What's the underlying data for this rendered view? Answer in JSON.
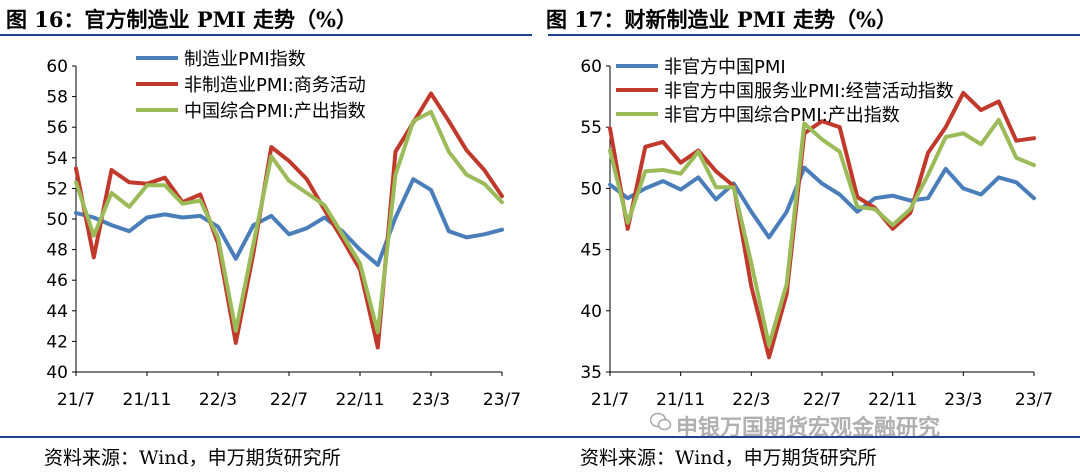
{
  "left_panel": {
    "title": "图 16：官方制造业 PMI 走势（%）",
    "source": "资料来源：Wind，申万期货研究所"
  },
  "right_panel": {
    "title": "图 17：财新制造业 PMI 走势（%）",
    "source": "资料来源：Wind，申万期货研究所"
  },
  "watermark": "申银万国期货宏观金融研究",
  "colors": {
    "blue": "#4a7ebb",
    "red": "#c0392b",
    "green": "#9bbb59",
    "frame": "#1f3f8f"
  },
  "chart_data": [
    {
      "type": "line",
      "title": "",
      "x": [
        "21/7",
        "21/8",
        "21/9",
        "21/10",
        "21/11",
        "21/12",
        "22/1",
        "22/2",
        "22/3",
        "22/4",
        "22/5",
        "22/6",
        "22/7",
        "22/8",
        "22/9",
        "22/10",
        "22/11",
        "22/12",
        "23/1",
        "23/2",
        "23/3",
        "23/4",
        "23/5",
        "23/6",
        "23/7"
      ],
      "tick_labels": [
        "21/7",
        "21/11",
        "22/3",
        "22/7",
        "22/11",
        "23/3",
        "23/7"
      ],
      "ylim": [
        40,
        60
      ],
      "yticks": [
        40,
        42,
        44,
        46,
        48,
        50,
        52,
        54,
        56,
        58,
        60
      ],
      "legend_position": "top-center",
      "series": [
        {
          "name": "制造业PMI指数",
          "color": "blue",
          "values": [
            50.4,
            50.1,
            49.6,
            49.2,
            50.1,
            50.3,
            50.1,
            50.2,
            49.5,
            47.4,
            49.6,
            50.2,
            49.0,
            49.4,
            50.1,
            49.2,
            48.0,
            47.0,
            50.1,
            52.6,
            51.9,
            49.2,
            48.8,
            49.0,
            49.3
          ]
        },
        {
          "name": "非制造业PMI:商务活动",
          "color": "red",
          "values": [
            53.3,
            47.5,
            53.2,
            52.4,
            52.3,
            52.7,
            51.1,
            51.6,
            48.4,
            41.9,
            47.8,
            54.7,
            53.8,
            52.6,
            50.6,
            48.7,
            46.7,
            41.6,
            54.4,
            56.3,
            58.2,
            56.4,
            54.5,
            53.2,
            51.5
          ]
        },
        {
          "name": "中国综合PMI:产出指数",
          "color": "green",
          "values": [
            52.4,
            48.9,
            51.7,
            50.8,
            52.2,
            52.2,
            51.0,
            51.2,
            48.8,
            42.7,
            48.4,
            54.1,
            52.5,
            51.7,
            50.9,
            49.0,
            47.1,
            42.6,
            52.9,
            56.4,
            57.0,
            54.4,
            52.9,
            52.3,
            51.1
          ]
        }
      ]
    },
    {
      "type": "line",
      "title": "",
      "x": [
        "21/7",
        "21/8",
        "21/9",
        "21/10",
        "21/11",
        "21/12",
        "22/1",
        "22/2",
        "22/3",
        "22/4",
        "22/5",
        "22/6",
        "22/7",
        "22/8",
        "22/9",
        "22/10",
        "22/11",
        "22/12",
        "23/1",
        "23/2",
        "23/3",
        "23/4",
        "23/5",
        "23/6",
        "23/7"
      ],
      "tick_labels": [
        "21/7",
        "21/11",
        "22/3",
        "22/7",
        "22/11",
        "23/3",
        "23/7"
      ],
      "ylim": [
        35,
        60
      ],
      "yticks": [
        35,
        40,
        45,
        50,
        55,
        60
      ],
      "legend_position": "top-left",
      "series": [
        {
          "name": "非官方中国PMI",
          "color": "blue",
          "values": [
            50.3,
            49.2,
            50.0,
            50.6,
            49.9,
            50.9,
            49.1,
            50.4,
            48.1,
            46.0,
            48.1,
            51.7,
            50.4,
            49.5,
            48.1,
            49.2,
            49.4,
            49.0,
            49.2,
            51.6,
            50.0,
            49.5,
            50.9,
            50.5,
            49.2
          ]
        },
        {
          "name": "非官方中国服务业PMI:经营活动指数",
          "color": "red",
          "values": [
            54.9,
            46.7,
            53.4,
            53.8,
            52.1,
            53.1,
            51.4,
            50.2,
            42.0,
            36.2,
            41.4,
            54.5,
            55.5,
            55.0,
            49.3,
            48.4,
            46.7,
            48.0,
            52.9,
            55.0,
            57.8,
            56.4,
            57.1,
            53.9,
            54.1
          ]
        },
        {
          "name": "非官方中国综合PMI:产出指数",
          "color": "green",
          "values": [
            53.1,
            47.2,
            51.4,
            51.5,
            51.2,
            53.0,
            50.1,
            50.1,
            43.9,
            37.2,
            42.2,
            55.3,
            54.0,
            53.0,
            48.5,
            48.3,
            47.0,
            48.3,
            51.1,
            54.2,
            54.5,
            53.6,
            55.6,
            52.5,
            51.9
          ]
        }
      ]
    }
  ]
}
